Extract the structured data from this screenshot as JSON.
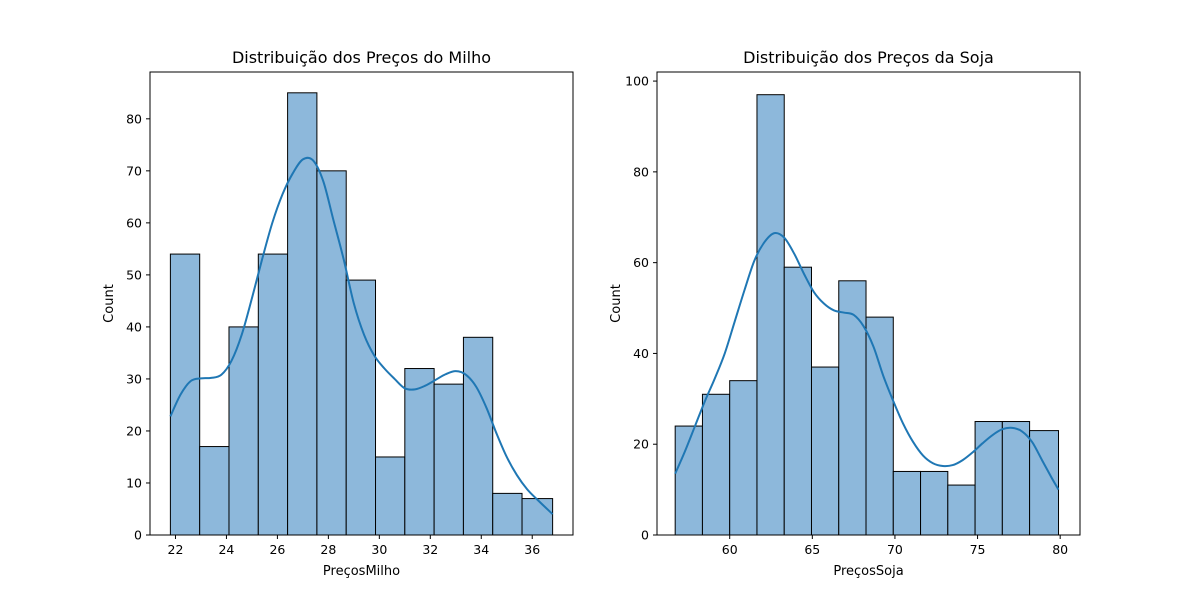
{
  "colors": {
    "bar_fill": "#8db8db",
    "bar_edge": "#000000",
    "kde_line": "#1f77b4",
    "axes": "#000000"
  },
  "chart_data": [
    {
      "type": "bar",
      "title": "Distribuição dos Preços do Milho",
      "xlabel": "PreçosMilho",
      "ylabel": "Count",
      "xlim": [
        21.0,
        37.6
      ],
      "ylim": [
        0,
        89
      ],
      "xticks": [
        22,
        24,
        26,
        28,
        30,
        32,
        34,
        36
      ],
      "yticks": [
        0,
        10,
        20,
        30,
        40,
        50,
        60,
        70,
        80
      ],
      "grid": false,
      "bins": [
        {
          "x0": 21.8,
          "x1": 22.95,
          "count": 54
        },
        {
          "x0": 22.95,
          "x1": 24.1,
          "count": 17
        },
        {
          "x0": 24.1,
          "x1": 25.25,
          "count": 40
        },
        {
          "x0": 25.25,
          "x1": 26.4,
          "count": 54
        },
        {
          "x0": 26.4,
          "x1": 27.55,
          "count": 85
        },
        {
          "x0": 27.55,
          "x1": 28.7,
          "count": 70
        },
        {
          "x0": 28.7,
          "x1": 29.85,
          "count": 49
        },
        {
          "x0": 29.85,
          "x1": 31.0,
          "count": 15
        },
        {
          "x0": 31.0,
          "x1": 32.15,
          "count": 32
        },
        {
          "x0": 32.15,
          "x1": 33.3,
          "count": 29
        },
        {
          "x0": 33.3,
          "x1": 34.45,
          "count": 38
        },
        {
          "x0": 34.45,
          "x1": 35.6,
          "count": 8
        },
        {
          "x0": 35.6,
          "x1": 36.8,
          "count": 7
        }
      ],
      "kde": {
        "x": [
          21.8,
          22.2,
          22.6,
          23.0,
          23.4,
          23.8,
          24.2,
          24.6,
          25.0,
          25.4,
          25.8,
          26.2,
          26.6,
          27.0,
          27.4,
          27.8,
          28.2,
          28.6,
          29.0,
          29.4,
          29.8,
          30.2,
          30.6,
          31.0,
          31.4,
          31.8,
          32.2,
          32.6,
          33.0,
          33.4,
          33.8,
          34.2,
          34.6,
          35.0,
          35.4,
          35.8,
          36.2,
          36.8
        ],
        "y": [
          22.8,
          27.0,
          29.6,
          30.1,
          30.2,
          30.8,
          33.5,
          38.5,
          45.5,
          53.0,
          60.0,
          65.5,
          69.5,
          72.2,
          72.0,
          68.0,
          60.5,
          53.0,
          44.5,
          38.5,
          34.5,
          32.0,
          30.0,
          28.2,
          28.0,
          28.7,
          29.8,
          30.9,
          31.5,
          30.8,
          28.5,
          24.5,
          19.5,
          15.0,
          11.5,
          8.8,
          6.8,
          4.0
        ]
      }
    },
    {
      "type": "bar",
      "title": "Distribuição dos Preços da Soja",
      "xlabel": "PreçosSoja",
      "ylabel": "Count",
      "xlim": [
        55.6,
        81.2
      ],
      "ylim": [
        0,
        102
      ],
      "xticks": [
        60,
        65,
        70,
        75,
        80
      ],
      "yticks": [
        0,
        20,
        40,
        60,
        80,
        100
      ],
      "grid": false,
      "bins": [
        {
          "x0": 56.7,
          "x1": 58.35,
          "count": 24
        },
        {
          "x0": 58.35,
          "x1": 60.0,
          "count": 31
        },
        {
          "x0": 60.0,
          "x1": 61.65,
          "count": 34
        },
        {
          "x0": 61.65,
          "x1": 63.3,
          "count": 97
        },
        {
          "x0": 63.3,
          "x1": 64.95,
          "count": 59
        },
        {
          "x0": 64.95,
          "x1": 66.6,
          "count": 37
        },
        {
          "x0": 66.6,
          "x1": 68.25,
          "count": 56
        },
        {
          "x0": 68.25,
          "x1": 69.9,
          "count": 48
        },
        {
          "x0": 69.9,
          "x1": 71.55,
          "count": 14
        },
        {
          "x0": 71.55,
          "x1": 73.2,
          "count": 14
        },
        {
          "x0": 73.2,
          "x1": 74.85,
          "count": 11
        },
        {
          "x0": 74.85,
          "x1": 76.5,
          "count": 25
        },
        {
          "x0": 76.5,
          "x1": 78.15,
          "count": 25
        },
        {
          "x0": 78.15,
          "x1": 79.9,
          "count": 23
        }
      ],
      "kde": {
        "x": [
          56.7,
          57.3,
          57.9,
          58.5,
          59.1,
          59.7,
          60.3,
          60.9,
          61.5,
          62.1,
          62.7,
          63.3,
          63.9,
          64.5,
          65.1,
          65.7,
          66.3,
          66.9,
          67.5,
          68.1,
          68.7,
          69.3,
          69.9,
          70.5,
          71.1,
          71.7,
          72.3,
          72.9,
          73.5,
          74.1,
          74.7,
          75.3,
          75.9,
          76.5,
          77.1,
          77.7,
          78.3,
          78.9,
          79.5,
          79.9
        ],
        "y": [
          13.5,
          18.5,
          24.0,
          29.5,
          34.5,
          40.0,
          47.0,
          54.0,
          60.5,
          64.5,
          66.5,
          65.5,
          62.0,
          57.5,
          53.5,
          51.0,
          49.5,
          49.0,
          48.5,
          46.0,
          41.5,
          35.0,
          29.5,
          24.5,
          20.5,
          17.5,
          15.8,
          15.2,
          15.4,
          16.5,
          18.2,
          20.2,
          22.0,
          23.3,
          23.6,
          22.8,
          20.5,
          16.5,
          12.5,
          10.0
        ]
      }
    }
  ]
}
